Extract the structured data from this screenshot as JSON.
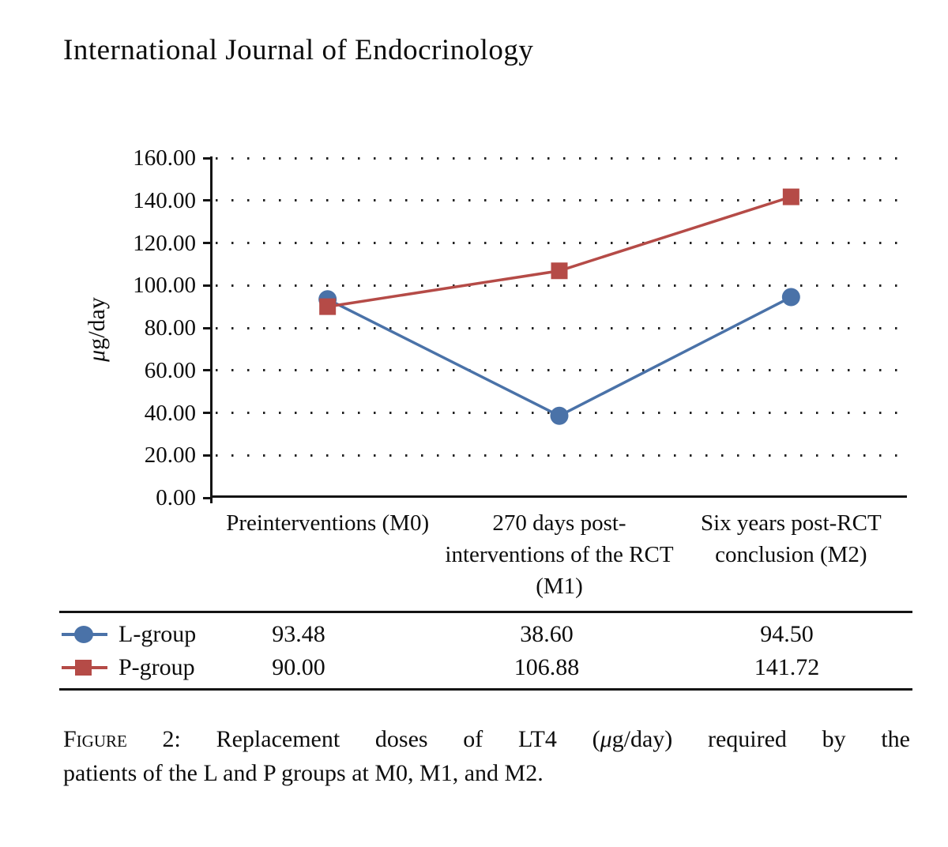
{
  "page": {
    "journal_title": "International Journal of Endocrinology"
  },
  "chart_data": {
    "type": "line",
    "title": "",
    "ylabel": "μg/day",
    "ylabel_mu": "μ",
    "ylabel_rest": "g/day",
    "ylim": [
      0,
      160
    ],
    "ytick_step": 20,
    "yticks": [
      "160.00",
      "140.00",
      "120.00",
      "100.00",
      "80.00",
      "60.00",
      "40.00",
      "20.00",
      "0.00"
    ],
    "grid": "horizontal-dotted",
    "legend_position": "table-below-chart",
    "categories": [
      "Preinterventions (M0)",
      "270 days post-interventions of the RCT (M1)",
      "Six years post-RCT conclusion (M2)"
    ],
    "series": [
      {
        "name": "L-group",
        "marker": "circle",
        "color": "#4a72a8",
        "values": [
          93.48,
          38.6,
          94.5
        ],
        "labels": [
          "93.48",
          "38.60",
          "94.50"
        ]
      },
      {
        "name": "P-group",
        "marker": "square",
        "color": "#b54b47",
        "values": [
          90.0,
          106.88,
          141.72
        ],
        "labels": [
          "90.00",
          "106.88",
          "141.72"
        ]
      }
    ]
  },
  "caption": {
    "figure_label": "Figure",
    "line1_a": " 2: Replacement doses of LT4 (",
    "line1_mu": "μ",
    "line1_b": "g/day) required by the",
    "line2": "patients of the L and P groups at M0, M1, and M2."
  }
}
